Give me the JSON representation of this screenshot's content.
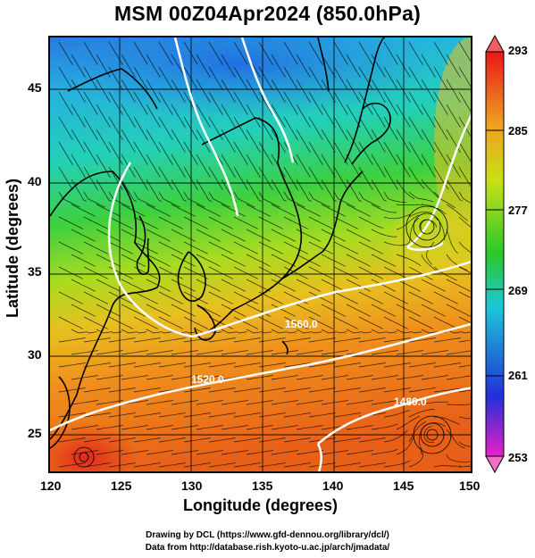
{
  "title": "MSM 00Z04Apr2024 (850.0hPa)",
  "axes": {
    "xlabel": "Longitude (degrees)",
    "ylabel": "Latitude  (degrees)",
    "x_ticks": [
      "120",
      "125",
      "130",
      "135",
      "140",
      "145",
      "150"
    ],
    "y_ticks": [
      "45",
      "40",
      "35",
      "30",
      "25"
    ],
    "xlim": [
      120,
      150
    ],
    "ylim": [
      22.4,
      47.6
    ]
  },
  "colorbar": {
    "ticks": [
      "293",
      "285",
      "277",
      "269",
      "261",
      "253"
    ],
    "min": 253,
    "max": 293,
    "colors": [
      "#e8208c",
      "#2030d8",
      "#1cc8d8",
      "#28c828",
      "#c8e018",
      "#f0a020",
      "#e81818"
    ]
  },
  "contour_labels": [
    "1560.0",
    "1520.0",
    "1480.0"
  ],
  "credits": {
    "line1": "Drawing by DCL (https://www.gfd-dennou.org/library/dcl/)",
    "line2": "Data from http://database.rish.kyoto-u.ac.jp/arch/jmadata/"
  }
}
